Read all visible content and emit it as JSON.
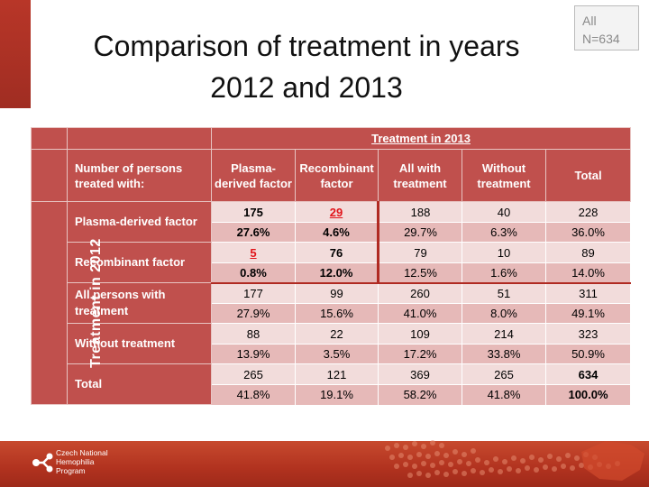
{
  "title": {
    "line1": "Comparison of treatment in years",
    "line2": "2012 and 2013"
  },
  "badge": {
    "line1": "All",
    "line2": "N=634"
  },
  "table": {
    "top_header": "Treatment in 2013",
    "side_header": "Treatment in 2012",
    "row_header_label": "Number of persons treated with:",
    "columns": [
      "Plasma-derived factor",
      "Recombinant factor",
      "All with treatment",
      "Without treatment",
      "Total"
    ],
    "rows": [
      {
        "label": "Plasma-derived factor",
        "counts": [
          "175",
          "29",
          "188",
          "40",
          "228"
        ],
        "percents": [
          "27.6%",
          "4.6%",
          "29.7%",
          "6.3%",
          "36.0%"
        ]
      },
      {
        "label": "Recombinant factor",
        "counts": [
          "5",
          "76",
          "79",
          "10",
          "89"
        ],
        "percents": [
          "0.8%",
          "12.0%",
          "12.5%",
          "1.6%",
          "14.0%"
        ]
      },
      {
        "label": "All persons with treatment",
        "counts": [
          "177",
          "99",
          "260",
          "51",
          "311"
        ],
        "percents": [
          "27.9%",
          "15.6%",
          "41.0%",
          "8.0%",
          "49.1%"
        ]
      },
      {
        "label": "Without treatment",
        "counts": [
          "88",
          "22",
          "109",
          "214",
          "323"
        ],
        "percents": [
          "13.9%",
          "3.5%",
          "17.2%",
          "33.8%",
          "50.9%"
        ]
      },
      {
        "label": "Total",
        "counts": [
          "265",
          "121",
          "369",
          "265",
          "634"
        ],
        "percents": [
          "41.8%",
          "19.1%",
          "58.2%",
          "41.8%",
          "100.0%"
        ]
      }
    ]
  },
  "footer": {
    "logo_line1": "Czech National",
    "logo_line2": "Hemophilia",
    "logo_line3": "Program"
  },
  "colors": {
    "header_red": "#c0504d",
    "light_pink": "#f2dcdb",
    "medium_pink": "#e6b9b8",
    "highlight_red": "#e1141a",
    "footer_red": "#b1321f"
  },
  "icons": {
    "logo": "molecule-logo-icon"
  }
}
